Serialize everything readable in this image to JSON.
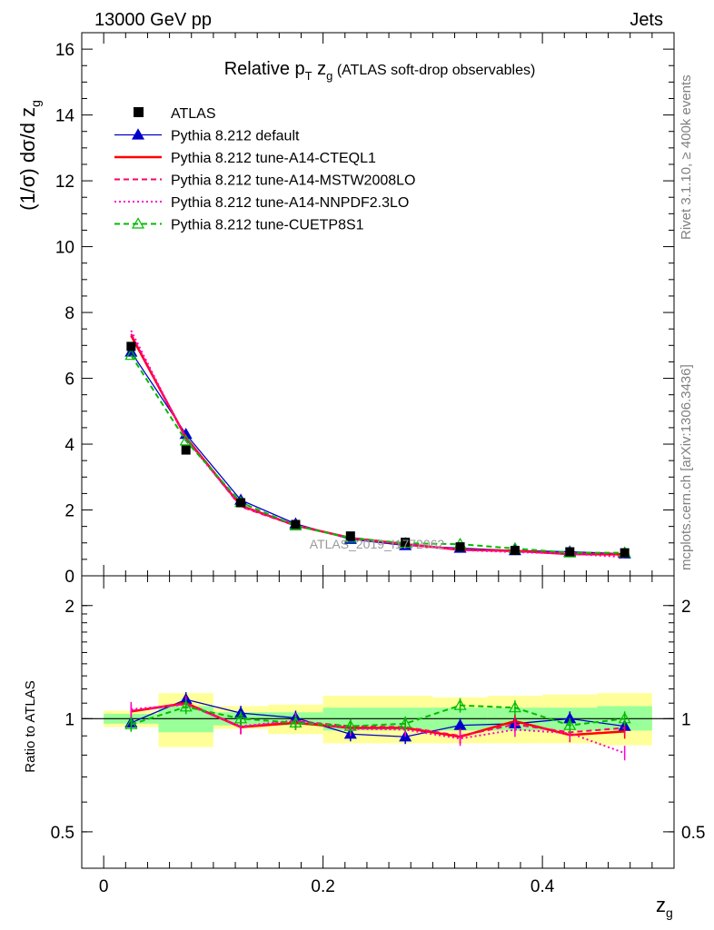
{
  "header": {
    "energy_label": "13000 GeV pp",
    "process_label": "Jets"
  },
  "side_labels": {
    "rivet": "Rivet 3.1.10, ≥ 400k events",
    "mcplots": "mcplots.cern.ch [arXiv:1306.3436]"
  },
  "watermark": "ATLAS_2019_I1772062",
  "chart_data": [
    {
      "type": "line",
      "panel": "main",
      "title": "Relative pT zg (ATLAS soft-drop observables)",
      "title_parts": {
        "pre": "Relative p",
        "sub": "T",
        "mid": " z",
        "sub2": "g",
        "post": " (ATLAS soft-drop observables)"
      },
      "xlabel": "zg",
      "ylabel": "(1/σ) dσ/d zg",
      "xlim": [
        -0.02,
        0.52
      ],
      "ylim": [
        0,
        16.5
      ],
      "yticks": [
        0,
        2,
        4,
        6,
        8,
        10,
        12,
        14,
        16
      ],
      "ytick_labels": [
        "0",
        "2",
        "4",
        "6",
        "8",
        "10",
        "12",
        "14",
        "16"
      ],
      "x": [
        0.025,
        0.075,
        0.125,
        0.175,
        0.225,
        0.275,
        0.325,
        0.375,
        0.425,
        0.475
      ],
      "legend": [
        "ATLAS",
        "Pythia 8.212 default",
        "Pythia 8.212 tune-A14-CTEQL1",
        "Pythia 8.212 tune-A14-MSTW2008LO",
        "Pythia 8.212 tune-A14-NNPDF2.3LO",
        "Pythia 8.212 tune-CUETP8S1"
      ],
      "series": [
        {
          "name": "ATLAS",
          "color": "#000000",
          "style": "marker-square",
          "values": [
            6.97,
            3.82,
            2.22,
            1.56,
            1.21,
            1.02,
            0.88,
            0.77,
            0.73,
            0.7
          ]
        },
        {
          "name": "Pythia 8.212 default",
          "color": "#0000cc",
          "style": "solid-triangle",
          "values": [
            6.8,
            4.3,
            2.3,
            1.58,
            1.11,
            0.92,
            0.84,
            0.77,
            0.73,
            0.67
          ]
        },
        {
          "name": "Pythia 8.212 tune-A14-CTEQL1",
          "color": "#ff0000",
          "style": "solid",
          "values": [
            7.3,
            4.2,
            2.13,
            1.53,
            1.15,
            0.96,
            0.79,
            0.76,
            0.66,
            0.65
          ]
        },
        {
          "name": "Pythia 8.212 tune-A14-MSTW2008LO",
          "color": "#ff0066",
          "style": "dashed",
          "values": [
            7.35,
            4.18,
            2.1,
            1.52,
            1.16,
            0.97,
            0.8,
            0.74,
            0.68,
            0.66
          ]
        },
        {
          "name": "Pythia 8.212 tune-A14-NNPDF2.3LO",
          "color": "#ff00cc",
          "style": "dotted",
          "values": [
            7.45,
            4.15,
            2.12,
            1.54,
            1.14,
            0.95,
            0.78,
            0.72,
            0.67,
            0.57
          ]
        },
        {
          "name": "Pythia 8.212 tune-CUETP8S1",
          "color": "#00bb00",
          "style": "dashed-triangle-open",
          "values": [
            6.7,
            4.1,
            2.23,
            1.52,
            1.15,
            0.99,
            0.96,
            0.83,
            0.7,
            0.7
          ]
        }
      ]
    },
    {
      "type": "line",
      "panel": "ratio",
      "ylabel": "Ratio to ATLAS",
      "xlabel": "zg",
      "ylim": [
        0.4,
        2.4
      ],
      "log_y": true,
      "yticks": [
        0.5,
        1,
        2
      ],
      "ytick_labels": [
        "0.5",
        "1",
        "2"
      ],
      "xticks": [
        0,
        0.2,
        0.4
      ],
      "xtick_labels": [
        "0",
        "0.2",
        "0.4"
      ],
      "x": [
        0.025,
        0.075,
        0.125,
        0.175,
        0.225,
        0.275,
        0.325,
        0.375,
        0.425,
        0.475
      ],
      "bin_edges": [
        0.0,
        0.05,
        0.1,
        0.15,
        0.2,
        0.25,
        0.3,
        0.35,
        0.4,
        0.45,
        0.5
      ],
      "band_stat": {
        "color": "#99ff99",
        "low": [
          0.97,
          0.92,
          0.96,
          0.96,
          0.93,
          0.93,
          0.93,
          0.93,
          0.93,
          0.93
        ],
        "high": [
          1.03,
          1.08,
          1.04,
          1.04,
          1.07,
          1.07,
          1.07,
          1.07,
          1.07,
          1.08
        ]
      },
      "band_total": {
        "color": "#ffff99",
        "low": [
          0.95,
          0.84,
          0.94,
          0.91,
          0.86,
          0.86,
          0.86,
          0.86,
          0.86,
          0.85
        ],
        "high": [
          1.05,
          1.17,
          1.08,
          1.09,
          1.15,
          1.15,
          1.14,
          1.15,
          1.16,
          1.17
        ]
      },
      "series": [
        {
          "name": "Pythia 8.212 default",
          "color": "#0000cc",
          "style": "solid-triangle",
          "values": [
            0.975,
            1.125,
            1.035,
            1.005,
            0.91,
            0.895,
            0.96,
            0.97,
            1.0,
            0.955
          ]
        },
        {
          "name": "Pythia 8.212 tune-A14-CTEQL1",
          "color": "#ff0000",
          "style": "solid",
          "values": [
            1.045,
            1.1,
            0.95,
            0.975,
            0.945,
            0.945,
            0.895,
            0.985,
            0.905,
            0.925
          ]
        },
        {
          "name": "Pythia 8.212 tune-A14-MSTW2008LO",
          "color": "#ff0066",
          "style": "dashed",
          "values": [
            1.05,
            1.095,
            0.95,
            0.985,
            0.955,
            0.95,
            0.9,
            0.965,
            0.92,
            0.945
          ]
        },
        {
          "name": "Pythia 8.212 tune-A14-NNPDF2.3LO",
          "color": "#ff00cc",
          "style": "dotted",
          "values": [
            1.06,
            1.09,
            0.955,
            0.99,
            0.94,
            0.935,
            0.885,
            0.935,
            0.915,
            0.81
          ]
        },
        {
          "name": "Pythia 8.212 tune-CUETP8S1",
          "color": "#00bb00",
          "style": "dashed-triangle-open",
          "values": [
            0.965,
            1.075,
            1.0,
            0.975,
            0.955,
            0.97,
            1.085,
            1.07,
            0.96,
            1.0
          ]
        }
      ]
    }
  ]
}
